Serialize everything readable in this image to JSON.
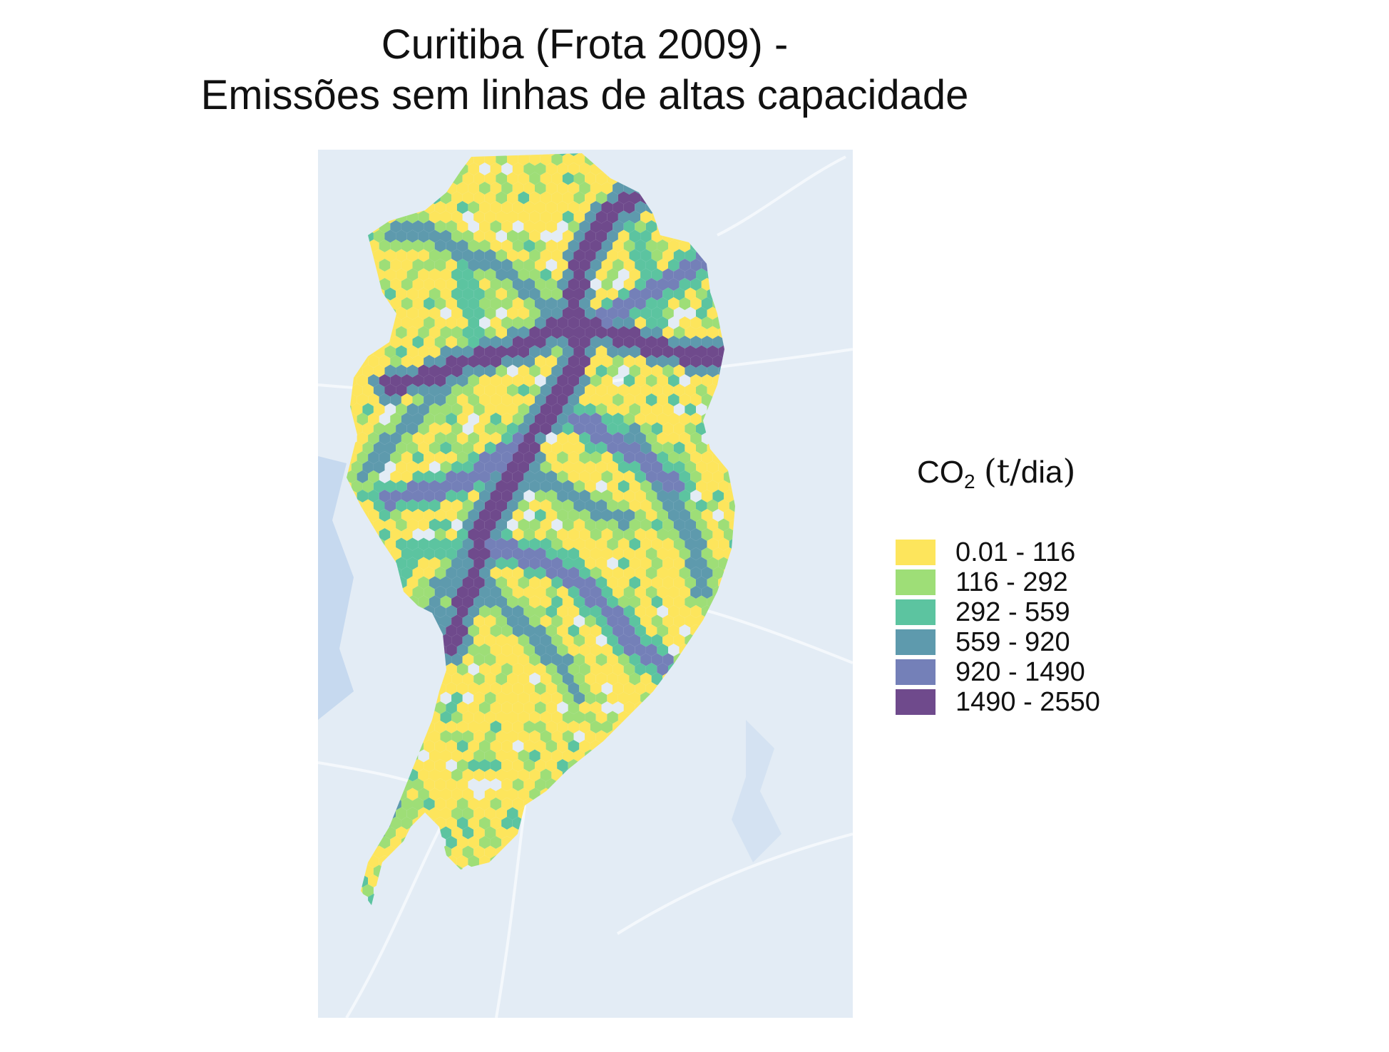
{
  "title": {
    "line1": "Curitiba (Frota 2009) -",
    "line2": "Emissões sem linhas de altas capacidade"
  },
  "legend": {
    "title_prefix": "CO",
    "title_subscript": "2",
    "title_unit_open": "(",
    "title_unit_t": "t",
    "title_unit_slash": "/",
    "title_unit_rest": "dia",
    "title_unit_close": ")",
    "items": [
      {
        "label": "0.01 - 116",
        "color": "#fde55c"
      },
      {
        "label": "116 - 292",
        "color": "#9ede77"
      },
      {
        "label": "292 - 559",
        "color": "#5cc4a0"
      },
      {
        "label": "559 - 920",
        "color": "#5e9aad"
      },
      {
        "label": "920 - 1490",
        "color": "#7480b8"
      },
      {
        "label": "1490 - 2550",
        "color": "#6f4a8c"
      }
    ]
  },
  "map": {
    "basemap_color": "#e3ecf5",
    "water_color": "#c6d9ef",
    "road_color": "#f4f8fc",
    "corridors": [
      {
        "class": 5,
        "name": "center-north"
      },
      {
        "class": 5,
        "name": "center-south"
      },
      {
        "class": 5,
        "name": "center-east"
      },
      {
        "class": 5,
        "name": "center-west"
      },
      {
        "class": 4,
        "name": "south-loop"
      },
      {
        "class": 4,
        "name": "northeast"
      },
      {
        "class": 3,
        "name": "northwest"
      },
      {
        "class": 3,
        "name": "west"
      },
      {
        "class": 3,
        "name": "southwest"
      },
      {
        "class": 3,
        "name": "southeast"
      }
    ]
  }
}
